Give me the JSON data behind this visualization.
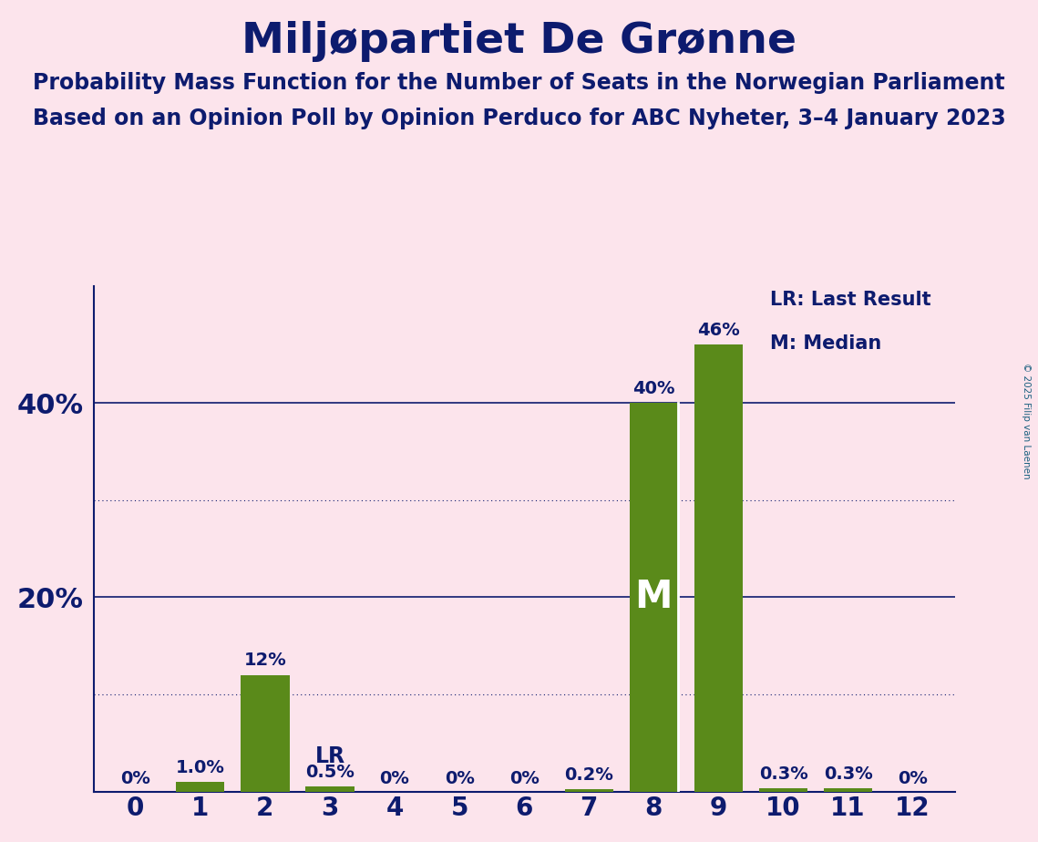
{
  "title": "Miljøpartiet De Grønne",
  "subtitle1": "Probability Mass Function for the Number of Seats in the Norwegian Parliament",
  "subtitle2": "Based on an Opinion Poll by Opinion Perduco for ABC Nyheter, 3–4 January 2023",
  "copyright": "© 2025 Filip van Laenen",
  "categories": [
    0,
    1,
    2,
    3,
    4,
    5,
    6,
    7,
    8,
    9,
    10,
    11,
    12
  ],
  "values": [
    0.0,
    1.0,
    12.0,
    0.5,
    0.0,
    0.0,
    0.0,
    0.2,
    40.0,
    46.0,
    0.3,
    0.3,
    0.0
  ],
  "bar_labels": [
    "0%",
    "1.0%",
    "12%",
    "0.5%",
    "0%",
    "0%",
    "0%",
    "0.2%",
    "40%",
    "46%",
    "0.3%",
    "0.3%",
    "0%"
  ],
  "bar_color": "#5a8a1a",
  "background_color": "#fce4ec",
  "text_color": "#0d1b6e",
  "grid_color": "#0d1b6e",
  "title_fontsize": 34,
  "subtitle_fontsize": 17,
  "ylim": [
    0,
    52
  ],
  "median_bar": 8,
  "lr_bar": 3,
  "legend_lr": "LR: Last Result",
  "legend_m": "M: Median",
  "m_label_color": "#ffffff",
  "solid_grid_values": [
    20,
    40
  ],
  "dotted_grid_values": [
    10,
    30
  ],
  "copyright_color": "#1a6080"
}
